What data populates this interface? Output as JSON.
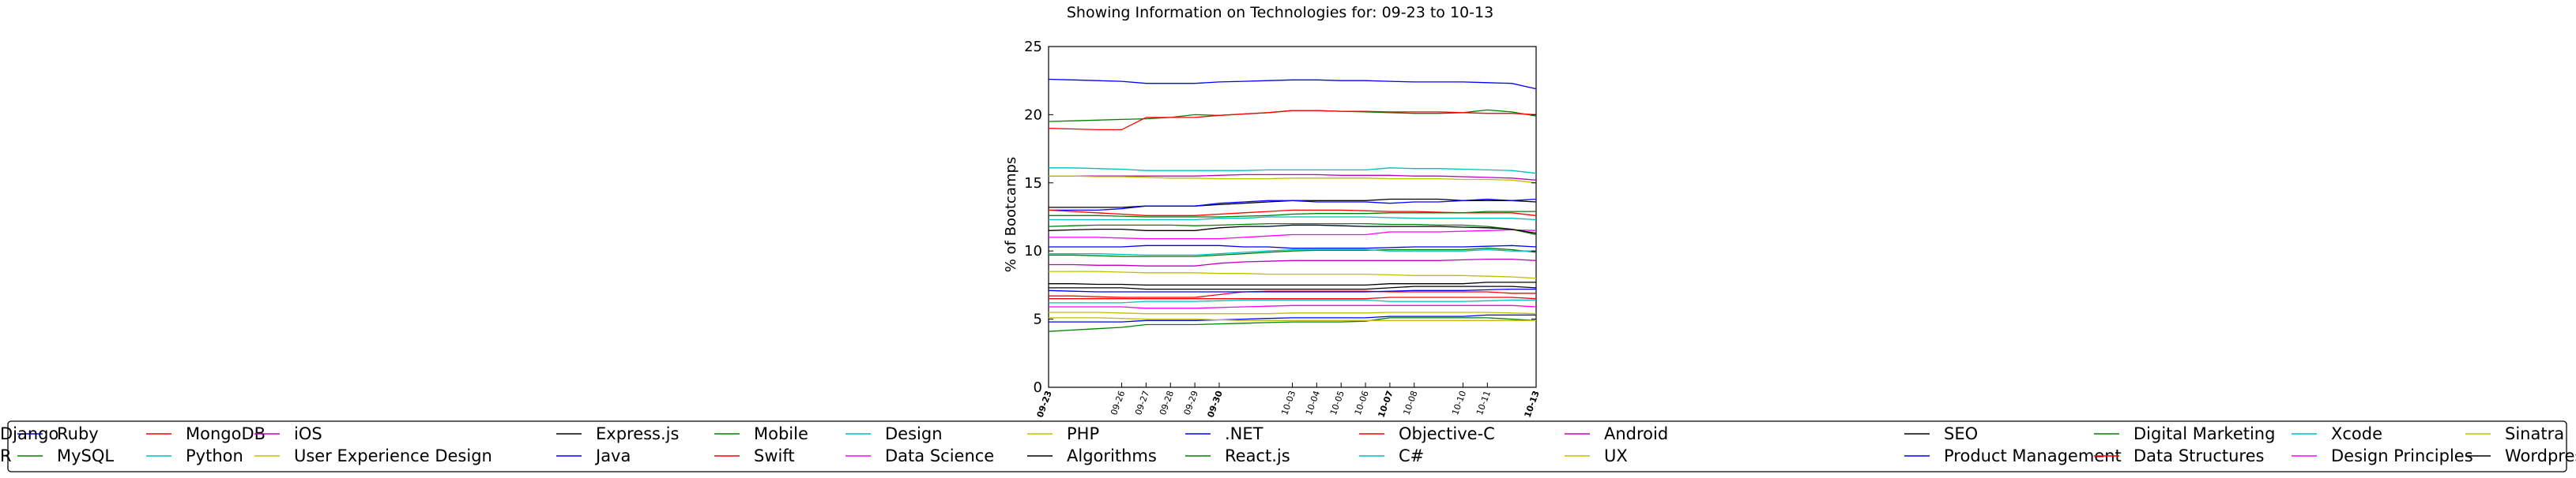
{
  "chart_data": {
    "type": "line",
    "title": "Showing Information on Technologies for: 09-23 to 10-13",
    "xlabel": "",
    "ylabel": "% of Bootcamps",
    "ylim": [
      0,
      25
    ],
    "yticks": [
      0,
      5,
      10,
      15,
      20,
      25
    ],
    "grid": false,
    "legend_position": "bottom",
    "x_dates": [
      "09-23",
      "09-24",
      "09-25",
      "09-26",
      "09-27",
      "09-28",
      "09-29",
      "09-30",
      "10-01",
      "10-02",
      "10-03",
      "10-04",
      "10-05",
      "10-06",
      "10-07",
      "10-08",
      "10-09",
      "10-10",
      "10-11",
      "10-12",
      "10-13"
    ],
    "x_tick_labels": [
      {
        "label": "09-23",
        "bold": true
      },
      {
        "label": "09-26",
        "bold": false
      },
      {
        "label": "09-27",
        "bold": false
      },
      {
        "label": "09-28",
        "bold": false
      },
      {
        "label": "09-29",
        "bold": false
      },
      {
        "label": "09-30",
        "bold": true
      },
      {
        "label": "10-03",
        "bold": false
      },
      {
        "label": "10-04",
        "bold": false
      },
      {
        "label": "10-05",
        "bold": false
      },
      {
        "label": "10-06",
        "bold": false
      },
      {
        "label": "10-07",
        "bold": true
      },
      {
        "label": "10-08",
        "bold": false
      },
      {
        "label": "10-10",
        "bold": false
      },
      {
        "label": "10-11",
        "bold": false
      },
      {
        "label": "10-13",
        "bold": true
      }
    ],
    "series": [
      {
        "name": "Ruby",
        "color": "#0000ff",
        "values": [
          22.6,
          22.55,
          22.5,
          22.45,
          22.3,
          22.3,
          22.3,
          22.4,
          22.45,
          22.5,
          22.55,
          22.55,
          22.5,
          22.5,
          22.45,
          22.4,
          22.4,
          22.4,
          22.35,
          22.3,
          21.9
        ]
      },
      {
        "name": "MySQL",
        "color": "#008000",
        "values": [
          19.5,
          19.55,
          19.6,
          19.65,
          19.7,
          19.8,
          20.0,
          19.95,
          20.05,
          20.15,
          20.3,
          20.3,
          20.25,
          20.2,
          20.15,
          20.1,
          20.1,
          20.15,
          20.35,
          20.2,
          19.9
        ]
      },
      {
        "name": "MongoDB",
        "color": "#ff0000",
        "values": [
          19.0,
          18.95,
          18.9,
          18.9,
          19.8,
          19.8,
          19.8,
          19.95,
          20.05,
          20.15,
          20.3,
          20.3,
          20.25,
          20.25,
          20.2,
          20.2,
          20.2,
          20.15,
          20.1,
          20.1,
          20.0
        ]
      },
      {
        "name": "Python",
        "color": "#00bfbf",
        "values": [
          16.1,
          16.1,
          16.05,
          16.0,
          15.9,
          15.9,
          15.9,
          15.9,
          15.9,
          15.95,
          15.95,
          15.95,
          15.95,
          15.95,
          16.1,
          16.05,
          16.05,
          16.0,
          15.95,
          15.9,
          15.7
        ]
      },
      {
        "name": "iOS",
        "color": "#bf00bf",
        "values": [
          15.5,
          15.5,
          15.5,
          15.5,
          15.5,
          15.5,
          15.5,
          15.55,
          15.6,
          15.6,
          15.6,
          15.6,
          15.55,
          15.55,
          15.55,
          15.5,
          15.5,
          15.45,
          15.4,
          15.35,
          15.2
        ]
      },
      {
        "name": "User Experience Design",
        "color": "#bfbf00",
        "values": [
          15.5,
          15.5,
          15.45,
          15.45,
          15.4,
          15.35,
          15.35,
          15.3,
          15.3,
          15.3,
          15.35,
          15.35,
          15.35,
          15.35,
          15.3,
          15.3,
          15.3,
          15.25,
          15.25,
          15.2,
          15.0
        ]
      },
      {
        "name": "Express.js",
        "color": "#000000",
        "values": [
          13.2,
          13.2,
          13.2,
          13.2,
          13.3,
          13.3,
          13.3,
          13.4,
          13.5,
          13.6,
          13.7,
          13.7,
          13.7,
          13.7,
          13.8,
          13.8,
          13.8,
          13.7,
          13.7,
          13.7,
          13.6
        ]
      },
      {
        "name": "Java",
        "color": "#0000ff",
        "values": [
          13.0,
          13.0,
          13.0,
          13.1,
          13.3,
          13.3,
          13.3,
          13.5,
          13.6,
          13.7,
          13.7,
          13.6,
          13.6,
          13.6,
          13.5,
          13.6,
          13.6,
          13.7,
          13.8,
          13.7,
          13.8
        ]
      },
      {
        "name": "Mobile",
        "color": "#008000",
        "values": [
          11.8,
          11.85,
          11.9,
          11.9,
          11.9,
          11.9,
          11.85,
          11.9,
          11.95,
          12.0,
          12.0,
          12.0,
          12.0,
          12.0,
          11.95,
          11.95,
          11.9,
          11.9,
          11.8,
          11.6,
          11.2
        ]
      },
      {
        "name": "Swift",
        "color": "#ff0000",
        "values": [
          13.0,
          12.9,
          12.8,
          12.7,
          12.6,
          12.6,
          12.6,
          12.7,
          12.8,
          12.9,
          13.0,
          13.0,
          13.0,
          12.95,
          12.9,
          12.9,
          12.85,
          12.8,
          12.8,
          12.8,
          12.6
        ]
      },
      {
        "name": "Design",
        "color": "#00bfbf",
        "values": [
          12.3,
          12.3,
          12.3,
          12.3,
          12.3,
          12.3,
          12.3,
          12.4,
          12.4,
          12.5,
          12.5,
          12.5,
          12.5,
          12.5,
          12.45,
          12.4,
          12.4,
          12.4,
          12.4,
          12.4,
          12.3
        ]
      },
      {
        "name": "Data Science",
        "color": "#ff00ff",
        "values": [
          11.0,
          11.0,
          11.0,
          10.95,
          10.9,
          10.9,
          10.9,
          10.9,
          11.0,
          11.1,
          11.2,
          11.2,
          11.2,
          11.2,
          11.4,
          11.4,
          11.4,
          11.45,
          11.5,
          11.55,
          11.5
        ]
      },
      {
        "name": "PHP",
        "color": "#bfbf00",
        "values": [
          8.5,
          8.5,
          8.5,
          8.45,
          8.4,
          8.4,
          8.4,
          8.35,
          8.35,
          8.3,
          8.3,
          8.3,
          8.3,
          8.3,
          8.25,
          8.2,
          8.2,
          8.2,
          8.15,
          8.1,
          8.0
        ]
      },
      {
        "name": "Algorithms",
        "color": "#000000",
        "values": [
          7.3,
          7.3,
          7.3,
          7.3,
          7.2,
          7.2,
          7.2,
          7.2,
          7.2,
          7.2,
          7.2,
          7.2,
          7.2,
          7.2,
          7.3,
          7.4,
          7.4,
          7.4,
          7.4,
          7.4,
          7.3
        ]
      },
      {
        "name": ".NET",
        "color": "#0000ff",
        "values": [
          10.3,
          10.3,
          10.3,
          10.3,
          10.4,
          10.4,
          10.4,
          10.4,
          10.3,
          10.3,
          10.2,
          10.2,
          10.2,
          10.2,
          10.25,
          10.3,
          10.3,
          10.3,
          10.35,
          10.4,
          10.3
        ]
      },
      {
        "name": "React.js",
        "color": "#008000",
        "values": [
          4.1,
          4.2,
          4.3,
          4.4,
          4.6,
          4.6,
          4.6,
          4.65,
          4.7,
          4.75,
          4.8,
          4.8,
          4.8,
          4.85,
          5.1,
          5.1,
          5.1,
          5.1,
          5.1,
          5.0,
          4.9
        ]
      },
      {
        "name": "Objective-C",
        "color": "#ff0000",
        "values": [
          6.7,
          6.7,
          6.65,
          6.6,
          6.6,
          6.6,
          6.6,
          6.8,
          7.0,
          7.05,
          7.05,
          7.05,
          7.05,
          7.05,
          7.0,
          7.0,
          7.0,
          7.0,
          7.0,
          6.9,
          6.9
        ]
      },
      {
        "name": "C#",
        "color": "#00bfbf",
        "values": [
          6.2,
          6.2,
          6.2,
          6.2,
          6.3,
          6.3,
          6.3,
          6.35,
          6.4,
          6.4,
          6.4,
          6.4,
          6.4,
          6.4,
          6.3,
          6.3,
          6.3,
          6.3,
          6.35,
          6.4,
          6.4
        ]
      },
      {
        "name": "Android",
        "color": "#bf00bf",
        "values": [
          9.0,
          9.0,
          8.95,
          8.95,
          8.9,
          8.9,
          8.9,
          9.1,
          9.2,
          9.25,
          9.3,
          9.3,
          9.3,
          9.3,
          9.3,
          9.3,
          9.3,
          9.35,
          9.4,
          9.4,
          9.3
        ]
      },
      {
        "name": "UX",
        "color": "#bfbf00",
        "values": [
          5.5,
          5.5,
          5.5,
          5.45,
          5.4,
          5.4,
          5.4,
          5.4,
          5.4,
          5.4,
          5.45,
          5.45,
          5.45,
          5.45,
          5.5,
          5.5,
          5.5,
          5.5,
          5.5,
          5.45,
          5.4
        ]
      },
      {
        "name": "SEO",
        "color": "#000000",
        "values": [
          7.6,
          7.6,
          7.55,
          7.55,
          7.5,
          7.5,
          7.5,
          7.5,
          7.5,
          7.5,
          7.5,
          7.5,
          7.5,
          7.5,
          7.6,
          7.6,
          7.6,
          7.6,
          7.7,
          7.7,
          7.7
        ]
      },
      {
        "name": "Product Management",
        "color": "#0000ff",
        "values": [
          4.8,
          4.8,
          4.8,
          4.8,
          4.9,
          4.9,
          4.9,
          4.95,
          5.0,
          5.05,
          5.1,
          5.1,
          5.1,
          5.1,
          5.2,
          5.2,
          5.2,
          5.2,
          5.3,
          5.3,
          5.3
        ]
      },
      {
        "name": "Digital Marketing",
        "color": "#008000",
        "values": [
          9.7,
          9.7,
          9.65,
          9.6,
          9.6,
          9.6,
          9.6,
          9.7,
          9.8,
          9.9,
          10.0,
          10.05,
          10.05,
          10.05,
          10.1,
          10.1,
          10.1,
          10.1,
          10.2,
          10.1,
          9.9
        ]
      },
      {
        "name": "Data Structures",
        "color": "#ff0000",
        "values": [
          6.5,
          6.5,
          6.5,
          6.5,
          6.5,
          6.5,
          6.5,
          6.5,
          6.5,
          6.5,
          6.5,
          6.5,
          6.5,
          6.5,
          6.6,
          6.6,
          6.6,
          6.6,
          6.6,
          6.6,
          6.5
        ]
      },
      {
        "name": "Xcode",
        "color": "#00bfbf",
        "values": [
          9.8,
          9.8,
          9.8,
          9.75,
          9.7,
          9.7,
          9.7,
          9.8,
          9.9,
          10.0,
          10.1,
          10.1,
          10.1,
          10.1,
          10.0,
          10.0,
          10.0,
          10.0,
          10.1,
          10.0,
          10.0
        ]
      },
      {
        "name": "Design Principles",
        "color": "#ff00ff",
        "values": [
          5.9,
          5.9,
          5.9,
          5.9,
          5.8,
          5.8,
          5.8,
          5.85,
          5.9,
          5.95,
          6.0,
          6.0,
          6.0,
          6.0,
          6.0,
          6.0,
          6.0,
          6.0,
          6.0,
          6.0,
          5.9
        ]
      },
      {
        "name": "Sinatra",
        "color": "#bfbf00",
        "values": [
          5.1,
          5.1,
          5.1,
          5.05,
          5.0,
          5.0,
          5.0,
          4.95,
          4.9,
          4.9,
          4.9,
          4.9,
          4.9,
          4.9,
          4.9,
          4.9,
          4.9,
          4.9,
          4.9,
          4.9,
          4.9
        ]
      },
      {
        "name": "Wordpress",
        "color": "#000000",
        "values": [
          11.5,
          11.55,
          11.6,
          11.6,
          11.5,
          11.5,
          11.5,
          11.7,
          11.8,
          11.8,
          11.9,
          11.9,
          11.85,
          11.8,
          11.8,
          11.8,
          11.8,
          11.75,
          11.7,
          11.6,
          11.3
        ]
      },
      {
        "name": "Django",
        "color": "#0000ff",
        "values": [
          7.1,
          7.05,
          7.0,
          7.0,
          7.0,
          7.0,
          7.0,
          7.0,
          7.0,
          7.0,
          7.0,
          7.0,
          7.0,
          7.0,
          7.05,
          7.1,
          7.1,
          7.1,
          7.15,
          7.2,
          7.2
        ]
      },
      {
        "name": "R",
        "color": "#008000",
        "values": [
          12.6,
          12.6,
          12.6,
          12.55,
          12.5,
          12.5,
          12.5,
          12.5,
          12.55,
          12.6,
          12.7,
          12.75,
          12.75,
          12.75,
          12.8,
          12.8,
          12.8,
          12.8,
          12.9,
          12.9,
          12.9
        ]
      }
    ]
  }
}
